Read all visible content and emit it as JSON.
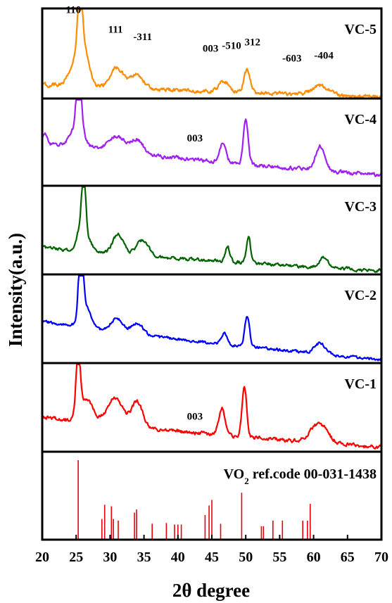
{
  "chart_data": {
    "type": "line",
    "xlabel": "2θ degree",
    "ylabel": "Intensity(a.u.)",
    "xlim": [
      20,
      70
    ],
    "xticks": [
      20,
      25,
      30,
      35,
      40,
      45,
      50,
      55,
      60,
      65,
      70
    ],
    "grid": false,
    "legend": "none (series labels printed at top-right of each panel)",
    "panels": [
      {
        "name": "VC-5",
        "color": "#FF8C00",
        "baseline": 0.16,
        "end": 0.02,
        "noise": 0.035,
        "noise_seed": 5,
        "peaks": [
          [
            25.6,
            0.78,
            0.35
          ],
          [
            25.4,
            0.35,
            1.1
          ],
          [
            26.6,
            0.15,
            0.5
          ],
          [
            31.0,
            0.22,
            1.0
          ],
          [
            34.0,
            0.16,
            0.9
          ],
          [
            46.8,
            0.12,
            0.7
          ],
          [
            50.2,
            0.25,
            0.45
          ],
          [
            61.0,
            0.1,
            1.2
          ]
        ],
        "peak_labels": [
          {
            "text": "110",
            "x": 24.6,
            "y": 0.95
          },
          {
            "text": "111",
            "x": 30.8,
            "y": 0.73
          },
          {
            "text": "-311",
            "x": 34.8,
            "y": 0.65
          },
          {
            "text": "003",
            "x": 44.8,
            "y": 0.52
          },
          {
            "text": "-510",
            "x": 47.9,
            "y": 0.55
          },
          {
            "text": "312",
            "x": 51.0,
            "y": 0.59
          },
          {
            "text": "-603",
            "x": 56.8,
            "y": 0.41
          },
          {
            "text": "-404",
            "x": 61.5,
            "y": 0.44
          }
        ]
      },
      {
        "name": "VC-4",
        "color": "#A020F0",
        "baseline": 0.5,
        "end": 0.12,
        "noise": 0.035,
        "noise_seed": 4,
        "peaks": [
          [
            25.4,
            0.72,
            0.33
          ],
          [
            25.2,
            0.25,
            1.0
          ],
          [
            20.4,
            0.1,
            0.3
          ],
          [
            31.0,
            0.18,
            1.3
          ],
          [
            34.0,
            0.16,
            0.9
          ],
          [
            46.6,
            0.22,
            0.45
          ],
          [
            50.0,
            0.5,
            0.35
          ],
          [
            61.0,
            0.28,
            0.7
          ]
        ],
        "peak_labels": [
          {
            "text": "003",
            "x": 42.5,
            "y": 0.51
          }
        ]
      },
      {
        "name": "VC-3",
        "color": "#006400",
        "baseline": 0.31,
        "end": 0.04,
        "noise": 0.03,
        "noise_seed": 3,
        "peaks": [
          [
            26.1,
            0.8,
            0.3
          ],
          [
            25.3,
            0.15,
            0.35
          ],
          [
            26.5,
            0.15,
            0.8
          ],
          [
            31.2,
            0.22,
            0.8
          ],
          [
            34.8,
            0.18,
            0.9
          ],
          [
            47.3,
            0.17,
            0.35
          ],
          [
            50.4,
            0.3,
            0.3
          ],
          [
            61.5,
            0.12,
            0.6
          ]
        ],
        "peak_labels": []
      },
      {
        "name": "VC-2",
        "color": "#0000FF",
        "baseline": 0.48,
        "end": 0.04,
        "noise": 0.025,
        "noise_seed": 2,
        "peaks": [
          [
            25.7,
            0.92,
            0.3
          ],
          [
            26.3,
            0.25,
            0.8
          ],
          [
            31.0,
            0.15,
            0.9
          ],
          [
            34.0,
            0.13,
            0.8
          ],
          [
            46.8,
            0.13,
            0.4
          ],
          [
            50.2,
            0.34,
            0.35
          ],
          [
            61.0,
            0.12,
            0.8
          ]
        ],
        "peak_labels": []
      },
      {
        "name": "VC-1",
        "color": "#FF0000",
        "baseline": 0.4,
        "end": 0.05,
        "noise": 0.035,
        "noise_seed": 1,
        "peaks": [
          [
            25.3,
            0.72,
            0.3
          ],
          [
            26.5,
            0.25,
            1.0
          ],
          [
            30.8,
            0.3,
            1.2
          ],
          [
            34.0,
            0.28,
            0.8
          ],
          [
            46.5,
            0.3,
            0.45
          ],
          [
            49.8,
            0.55,
            0.35
          ],
          [
            60.8,
            0.22,
            1.2
          ]
        ],
        "peak_labels": [
          {
            "text": "003",
            "x": 42.5,
            "y": 0.36
          }
        ]
      }
    ],
    "reference": {
      "name_prefix": "VO",
      "name_sub": "2",
      "name_suffix": " ref.code 00-031-1438",
      "color": "#E8000B",
      "lines": [
        {
          "x": 25.3,
          "intensity": 100
        },
        {
          "x": 28.8,
          "intensity": 26
        },
        {
          "x": 29.2,
          "intensity": 44
        },
        {
          "x": 30.2,
          "intensity": 42
        },
        {
          "x": 30.5,
          "intensity": 26
        },
        {
          "x": 31.2,
          "intensity": 24
        },
        {
          "x": 33.6,
          "intensity": 34
        },
        {
          "x": 33.9,
          "intensity": 38
        },
        {
          "x": 36.2,
          "intensity": 20
        },
        {
          "x": 38.3,
          "intensity": 21
        },
        {
          "x": 39.5,
          "intensity": 19
        },
        {
          "x": 40.0,
          "intensity": 19
        },
        {
          "x": 40.5,
          "intensity": 19
        },
        {
          "x": 44.0,
          "intensity": 31
        },
        {
          "x": 44.6,
          "intensity": 43
        },
        {
          "x": 45.0,
          "intensity": 50
        },
        {
          "x": 46.3,
          "intensity": 20
        },
        {
          "x": 49.4,
          "intensity": 59
        },
        {
          "x": 52.3,
          "intensity": 17
        },
        {
          "x": 52.6,
          "intensity": 17
        },
        {
          "x": 54.0,
          "intensity": 24
        },
        {
          "x": 55.4,
          "intensity": 24
        },
        {
          "x": 58.4,
          "intensity": 24
        },
        {
          "x": 59.1,
          "intensity": 24
        },
        {
          "x": 59.5,
          "intensity": 45
        }
      ]
    }
  }
}
